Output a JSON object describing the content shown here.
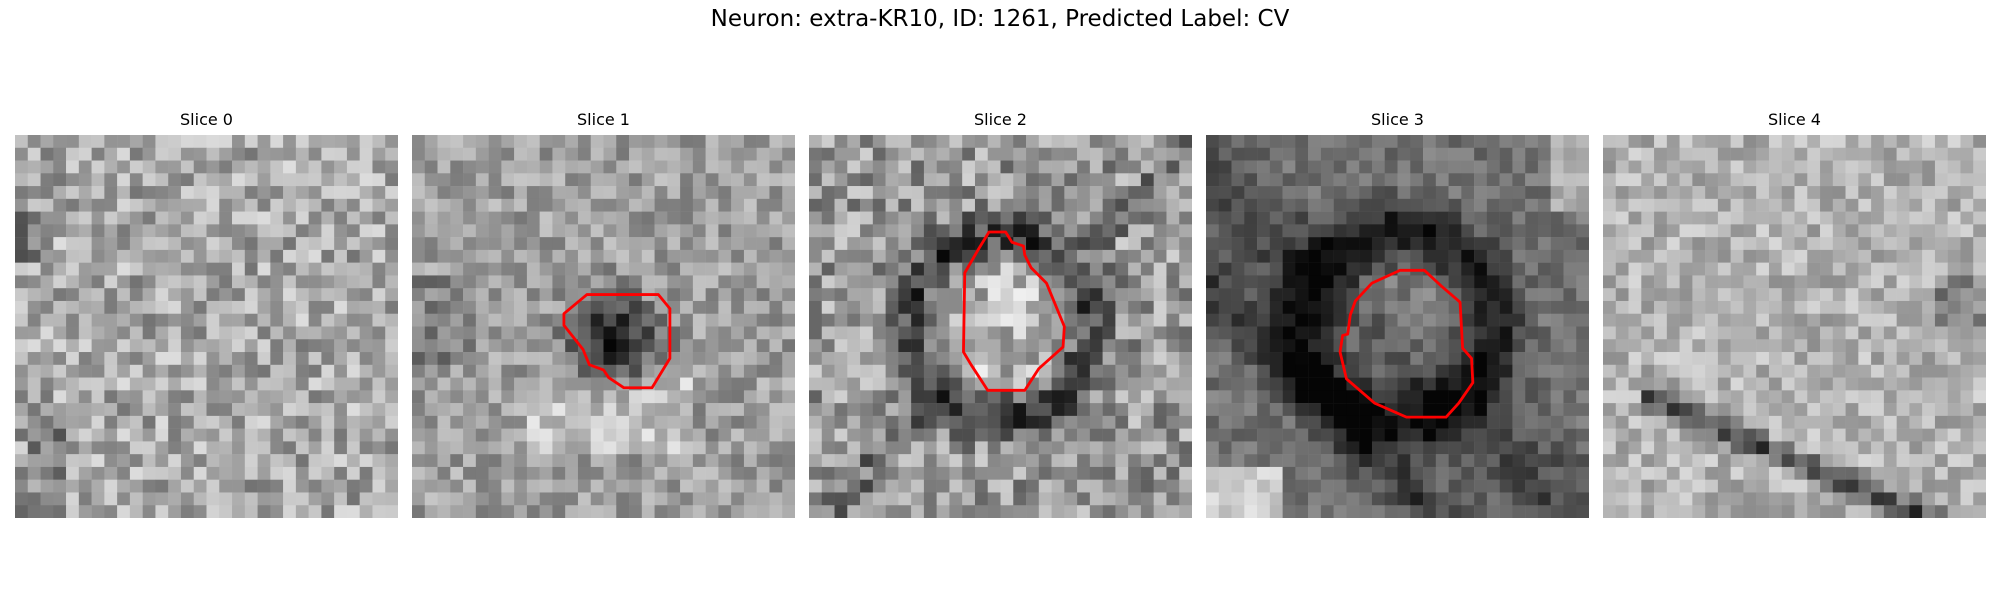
{
  "figure": {
    "title": "Neuron: extra-KR10, ID: 1261, Predicted Label: CV"
  },
  "colors": {
    "contour": "#ff0000",
    "background": "#ffffff"
  },
  "panels": [
    {
      "title": "Slice 0",
      "has_contour": false,
      "style": "noisy-light"
    },
    {
      "title": "Slice 1",
      "has_contour": true,
      "style": "ring-dark-center"
    },
    {
      "title": "Slice 2",
      "has_contour": true,
      "style": "ring-light-center"
    },
    {
      "title": "Slice 3",
      "has_contour": true,
      "style": "dark-band-ring"
    },
    {
      "title": "Slice 4",
      "has_contour": false,
      "style": "light-diagonal-streak"
    }
  ]
}
